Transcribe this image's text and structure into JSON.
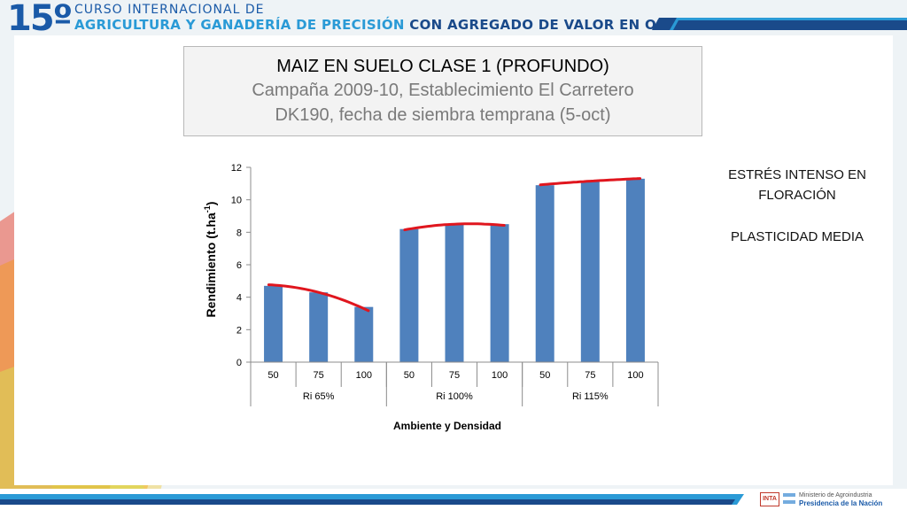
{
  "header": {
    "course_number": "15º",
    "line1": "CURSO INTERNACIONAL DE",
    "line2_part1": "AGRICULTURA Y GANADERÍA DE PRECISIÓN",
    "line2_part2": "CON AGREGADO DE VALOR EN ORIGEN"
  },
  "title_box": {
    "title": "MAIZ EN SUELO CLASE 1 (PROFUNDO)",
    "subtitle1": "Campaña 2009-10, Establecimiento El Carretero",
    "subtitle2": "DK190, fecha de siembra temprana (5-oct)"
  },
  "notes": {
    "note1_line1": "ESTRÉS INTENSO EN",
    "note1_line2": "FLORACIÓN",
    "note2": "PLASTICIDAD MEDIA"
  },
  "footer": {
    "logo1": "INTA",
    "ministry_line1": "Ministerio de Agroindustria",
    "ministry_line2": "Presidencia de la Nación"
  },
  "chart_data": {
    "type": "bar",
    "xlabel": "Ambiente y Densidad",
    "ylabel": "Rendimiento (t.ha",
    "ylabel_sup": "-1",
    "ylabel_end": ")",
    "ylim": [
      0,
      12
    ],
    "yticks": [
      0,
      2,
      4,
      6,
      8,
      10,
      12
    ],
    "groups": [
      {
        "name": "Ri 65%",
        "categories": [
          "50",
          "75",
          "100"
        ],
        "values": [
          4.7,
          4.3,
          3.4
        ],
        "trend": [
          4.75,
          4.3,
          3.3
        ]
      },
      {
        "name": "Ri 100%",
        "categories": [
          "50",
          "75",
          "100"
        ],
        "values": [
          8.2,
          8.5,
          8.5
        ],
        "trend": [
          8.2,
          8.5,
          8.45
        ]
      },
      {
        "name": "Ri 115%",
        "categories": [
          "50",
          "75",
          "100"
        ],
        "values": [
          10.9,
          11.1,
          11.3
        ],
        "trend": [
          10.95,
          11.15,
          11.3
        ]
      }
    ],
    "bar_color": "#4f81bd",
    "trend_color": "#e0161e",
    "grid": false,
    "legend": "none"
  }
}
